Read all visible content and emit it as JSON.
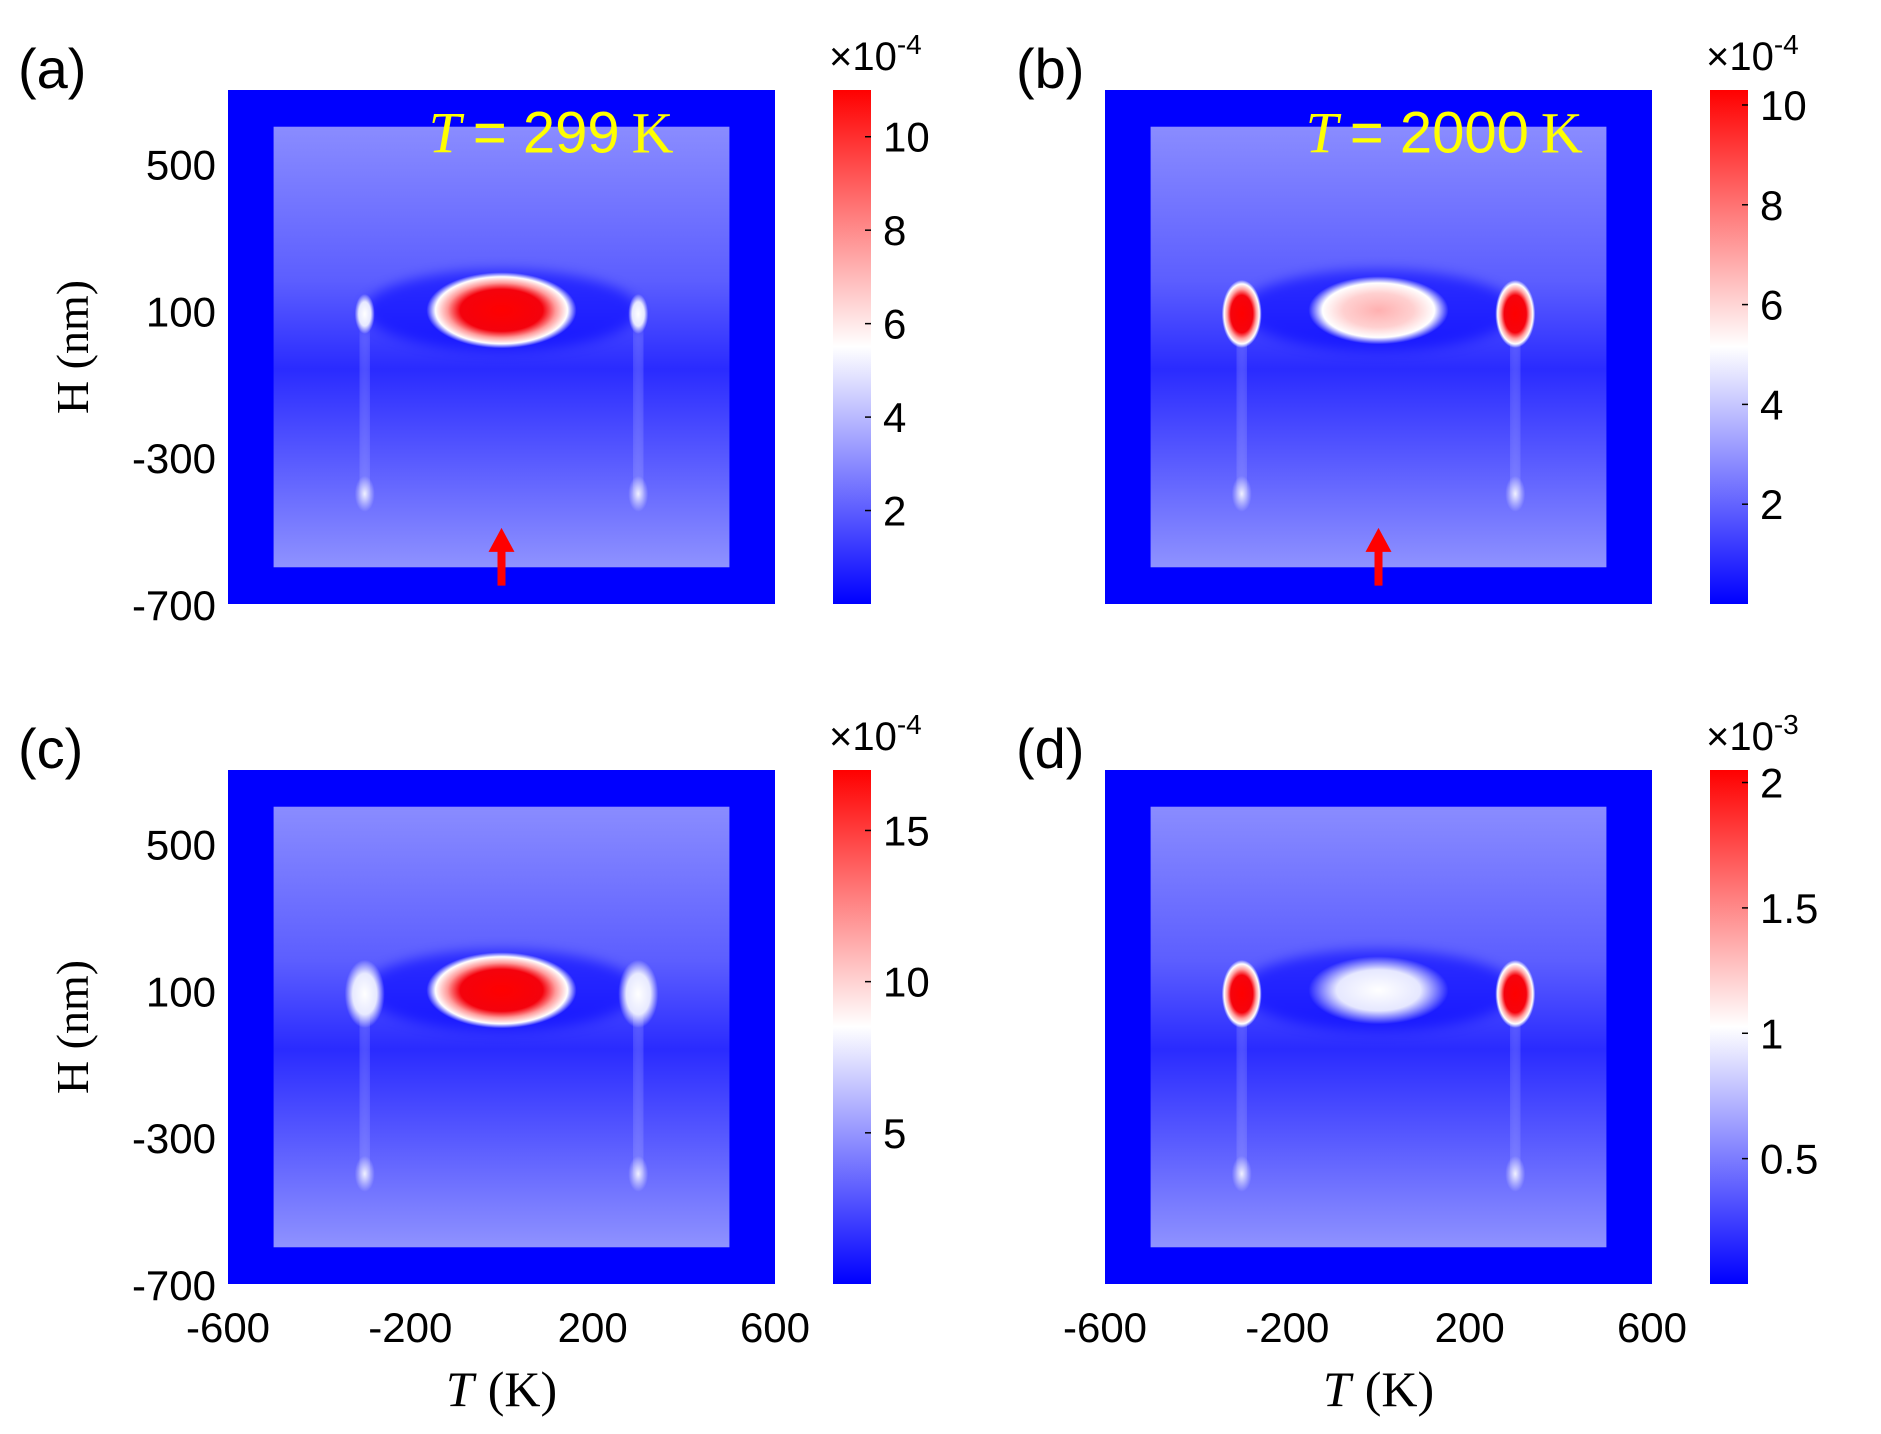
{
  "figure": {
    "colors": {
      "low": "#0000ff",
      "mid": "#ffffff",
      "high": "#ff0000",
      "annotation_text": "#ffff00",
      "arrow": "#ff0000"
    },
    "axes": {
      "xlabel_symbol": "T",
      "xlabel_unit": "(K)",
      "ylabel": "H (nm)"
    }
  },
  "chart_data": [
    {
      "type": "heatmap",
      "panel_label": "(a)",
      "xlim": [
        -600,
        600
      ],
      "ylim": [
        -700,
        700
      ],
      "xticks": [],
      "yticks": [
        "500",
        "100",
        "-300",
        "-700"
      ],
      "ylabel_shown": true,
      "annotation": {
        "symbol": "T",
        "text": "= 299",
        "unit": "K"
      },
      "arrow": true,
      "colorbar": {
        "multiplier": "×10",
        "exponent": "-4",
        "ticks": [
          "10",
          "8",
          "6",
          "4",
          "2"
        ],
        "range": [
          0,
          11
        ]
      },
      "features": {
        "center_hotspot": {
          "x": 0,
          "y": 100,
          "level": 1.0
        },
        "side_hotspots": "weak",
        "grid": false
      }
    },
    {
      "type": "heatmap",
      "panel_label": "(b)",
      "xlim": [
        -600,
        600
      ],
      "ylim": [
        -700,
        700
      ],
      "xticks": [],
      "yticks": [],
      "ylabel_shown": false,
      "annotation": {
        "symbol": "T",
        "text": "= 2000",
        "unit": "K"
      },
      "arrow": true,
      "colorbar": {
        "multiplier": "×10",
        "exponent": "-4",
        "ticks": [
          "10",
          "8",
          "6",
          "4",
          "2"
        ],
        "range": [
          0,
          10.3
        ]
      },
      "features": {
        "center_hotspot": {
          "x": 0,
          "y": 100,
          "level": 0.62
        },
        "side_hotspots": "strong",
        "grid": false
      }
    },
    {
      "type": "heatmap",
      "panel_label": "(c)",
      "xlim": [
        -600,
        600
      ],
      "ylim": [
        -700,
        700
      ],
      "xticks": [
        "-600",
        "-200",
        "200",
        "600"
      ],
      "yticks": [
        "500",
        "100",
        "-300",
        "-700"
      ],
      "ylabel_shown": true,
      "annotation": null,
      "arrow": false,
      "colorbar": {
        "multiplier": "×10",
        "exponent": "-4",
        "ticks": [
          "15",
          "10",
          "5"
        ],
        "range": [
          0,
          17
        ]
      },
      "features": {
        "center_hotspot": {
          "x": 0,
          "y": 100,
          "level": 1.0
        },
        "side_hotspots": "medium",
        "grid": false
      }
    },
    {
      "type": "heatmap",
      "panel_label": "(d)",
      "xlim": [
        -600,
        600
      ],
      "ylim": [
        -700,
        700
      ],
      "xticks": [
        "-600",
        "-200",
        "200",
        "600"
      ],
      "yticks": [],
      "ylabel_shown": false,
      "annotation": null,
      "arrow": false,
      "colorbar": {
        "multiplier": "×10",
        "exponent": "-3",
        "ticks": [
          "2",
          "1.5",
          "1",
          "0.5"
        ],
        "range": [
          0,
          2.05
        ]
      },
      "features": {
        "center_hotspot": {
          "x": 0,
          "y": 100,
          "level": 0.5
        },
        "side_hotspots": "strong",
        "grid": false
      }
    }
  ]
}
